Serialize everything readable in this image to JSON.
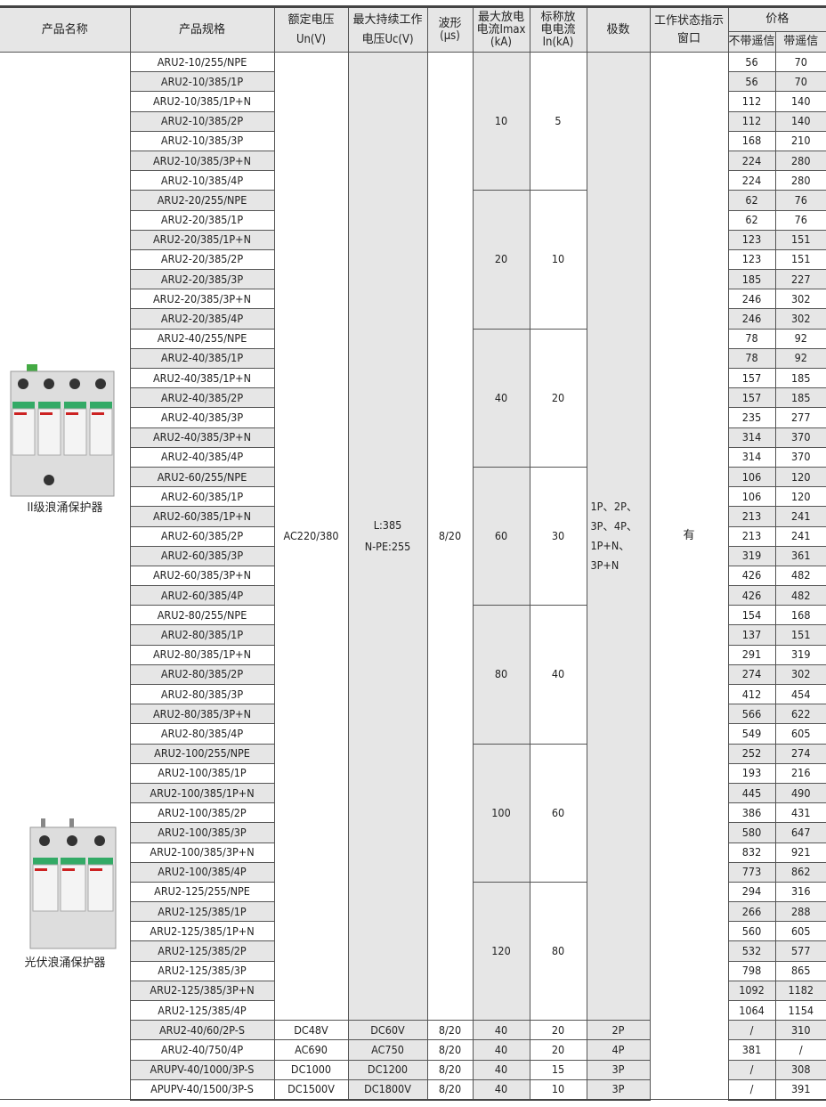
{
  "header": {
    "name": "产品名称",
    "spec": "产品规格",
    "un": "额定电压",
    "un_unit": "Un(V)",
    "uc": "最大持续工作",
    "uc_unit": "电压Uc(V)",
    "wave": "波形",
    "wave_unit": "(μs)",
    "imax": "最大放电电流Imax",
    "imax_unit": "(kA)",
    "in": "标称放电电流",
    "in_unit": "In(kA)",
    "poles": "极数",
    "status": "工作状态指示窗口",
    "price": "价格",
    "price_no": "不带遥信",
    "price_yes": "带遥信"
  },
  "products": [
    {
      "label": "II级浪涌保护器",
      "icon": "surge-protector-4-pole-image"
    },
    {
      "label": "光伏浪涌保护器",
      "icon": "pv-surge-protector-3-pole-image"
    }
  ],
  "common": {
    "un": "AC220/380",
    "uc": "L:385\nN-PE:255",
    "wave": "8/20",
    "poles": "1P、2P、\n3P、4P、\n1P+N、\n3P+N",
    "status": "有"
  },
  "groups": [
    {
      "imax": "10",
      "in": "5",
      "rows": [
        [
          "ARU2-10/255/NPE",
          "56",
          "70"
        ],
        [
          "ARU2-10/385/1P",
          "56",
          "70"
        ],
        [
          "ARU2-10/385/1P+N",
          "112",
          "140"
        ],
        [
          "ARU2-10/385/2P",
          "112",
          "140"
        ],
        [
          "ARU2-10/385/3P",
          "168",
          "210"
        ],
        [
          "ARU2-10/385/3P+N",
          "224",
          "280"
        ],
        [
          "ARU2-10/385/4P",
          "224",
          "280"
        ]
      ]
    },
    {
      "imax": "20",
      "in": "10",
      "rows": [
        [
          "ARU2-20/255/NPE",
          "62",
          "76"
        ],
        [
          "ARU2-20/385/1P",
          "62",
          "76"
        ],
        [
          "ARU2-20/385/1P+N",
          "123",
          "151"
        ],
        [
          "ARU2-20/385/2P",
          "123",
          "151"
        ],
        [
          "ARU2-20/385/3P",
          "185",
          "227"
        ],
        [
          "ARU2-20/385/3P+N",
          "246",
          "302"
        ],
        [
          "ARU2-20/385/4P",
          "246",
          "302"
        ]
      ]
    },
    {
      "imax": "40",
      "in": "20",
      "rows": [
        [
          "ARU2-40/255/NPE",
          "78",
          "92"
        ],
        [
          "ARU2-40/385/1P",
          "78",
          "92"
        ],
        [
          "ARU2-40/385/1P+N",
          "157",
          "185"
        ],
        [
          "ARU2-40/385/2P",
          "157",
          "185"
        ],
        [
          "ARU2-40/385/3P",
          "235",
          "277"
        ],
        [
          "ARU2-40/385/3P+N",
          "314",
          "370"
        ],
        [
          "ARU2-40/385/4P",
          "314",
          "370"
        ]
      ]
    },
    {
      "imax": "60",
      "in": "30",
      "rows": [
        [
          "ARU2-60/255/NPE",
          "106",
          "120"
        ],
        [
          "ARU2-60/385/1P",
          "106",
          "120"
        ],
        [
          "ARU2-60/385/1P+N",
          "213",
          "241"
        ],
        [
          "ARU2-60/385/2P",
          "213",
          "241"
        ],
        [
          "ARU2-60/385/3P",
          "319",
          "361"
        ],
        [
          "ARU2-60/385/3P+N",
          "426",
          "482"
        ],
        [
          "ARU2-60/385/4P",
          "426",
          "482"
        ]
      ]
    },
    {
      "imax": "80",
      "in": "40",
      "rows": [
        [
          "ARU2-80/255/NPE",
          "154",
          "168"
        ],
        [
          "ARU2-80/385/1P",
          "137",
          "151"
        ],
        [
          "ARU2-80/385/1P+N",
          "291",
          "319"
        ],
        [
          "ARU2-80/385/2P",
          "274",
          "302"
        ],
        [
          "ARU2-80/385/3P",
          "412",
          "454"
        ],
        [
          "ARU2-80/385/3P+N",
          "566",
          "622"
        ],
        [
          "ARU2-80/385/4P",
          "549",
          "605"
        ]
      ]
    },
    {
      "imax": "100",
      "in": "60",
      "rows": [
        [
          "ARU2-100/255/NPE",
          "252",
          "274"
        ],
        [
          "ARU2-100/385/1P",
          "193",
          "216"
        ],
        [
          "ARU2-100/385/1P+N",
          "445",
          "490"
        ],
        [
          "ARU2-100/385/2P",
          "386",
          "431"
        ],
        [
          "ARU2-100/385/3P",
          "580",
          "647"
        ],
        [
          "ARU2-100/385/3P+N",
          "832",
          "921"
        ],
        [
          "ARU2-100/385/4P",
          "773",
          "862"
        ]
      ]
    },
    {
      "imax": "120",
      "in": "80",
      "rows": [
        [
          "ARU2-125/255/NPE",
          "294",
          "316"
        ],
        [
          "ARU2-125/385/1P",
          "266",
          "288"
        ],
        [
          "ARU2-125/385/1P+N",
          "560",
          "605"
        ],
        [
          "ARU2-125/385/2P",
          "532",
          "577"
        ],
        [
          "ARU2-125/385/3P",
          "798",
          "865"
        ],
        [
          "ARU2-125/385/3P+N",
          "1092",
          "1182"
        ],
        [
          "ARU2-125/385/4P",
          "1064",
          "1154"
        ]
      ]
    }
  ],
  "extra_rows": [
    [
      "ARU2-40/60/2P-S",
      "DC48V",
      "DC60V",
      "8/20",
      "40",
      "20",
      "2P",
      "/",
      "310"
    ],
    [
      "ARU2-40/750/4P",
      "AC690",
      "AC750",
      "8/20",
      "40",
      "20",
      "4P",
      "381",
      "/"
    ],
    [
      "ARUPV-40/1000/3P-S",
      "DC1000",
      "DC1200",
      "8/20",
      "40",
      "15",
      "3P",
      "/",
      "308"
    ],
    [
      "APUPV-40/1500/3P-S",
      "DC1500V",
      "DC1800V",
      "8/20",
      "40",
      "10",
      "3P",
      "/",
      "391"
    ]
  ]
}
